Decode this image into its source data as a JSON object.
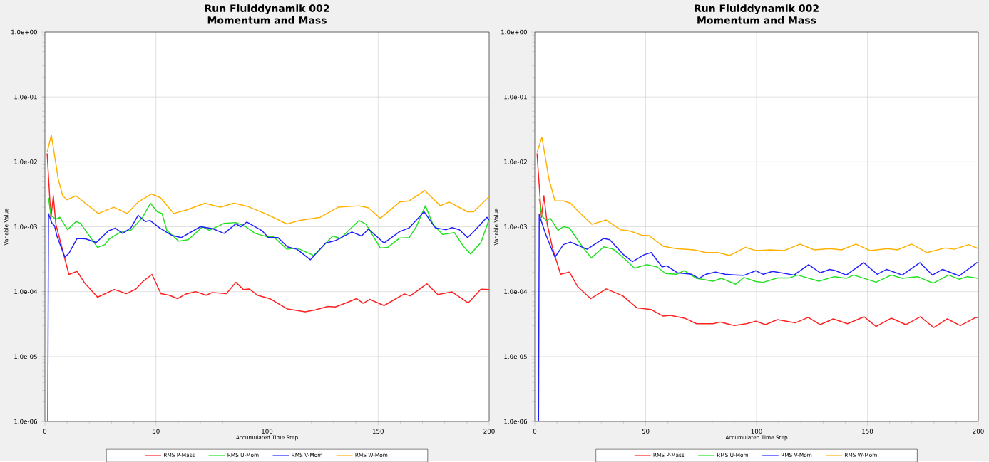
{
  "chart_data": [
    {
      "type": "line",
      "title": "Run Fluiddynamik 002",
      "subtitle": "Momentum and Mass",
      "xlabel": "Accumulated Time Step",
      "ylabel": "Variable Value",
      "log": "y",
      "grid": true,
      "legend": "bottom",
      "marker": "none",
      "xlim": [
        0,
        200
      ],
      "xticks": [
        0,
        50,
        100,
        150,
        200
      ],
      "ylim": [
        1e-06,
        1
      ],
      "yticks": [
        {
          "value": 1e-06,
          "label": "1.0e-06"
        },
        {
          "value": 1e-05,
          "label": "1.0e-05"
        },
        {
          "value": 0.0001,
          "label": "1.0e-04"
        },
        {
          "value": 0.001,
          "label": "1.0e-03"
        },
        {
          "value": 0.01,
          "label": "1.0e-02"
        },
        {
          "value": 0.1,
          "label": "1.0e-01"
        },
        {
          "value": 1,
          "label": "1.0e+00"
        }
      ],
      "series": [
        {
          "name": "RMS P-Mass",
          "color": "#ff2020",
          "x": [
            1,
            2.7,
            3.8,
            4.9,
            7.6,
            10.8,
            14.5,
            17.8,
            23.7,
            31.2,
            36.6,
            40.9,
            44.1,
            48.2,
            52.2,
            56,
            59.7,
            63.5,
            67.8,
            72.6,
            75.3,
            81.7,
            86,
            89.3,
            92,
            95.7,
            100,
            101.6,
            109.2,
            117.2,
            121.5,
            127.4,
            130.7,
            136,
            140.3,
            143.3,
            146.2,
            152.7,
            161.8,
            164.5,
            172,
            176.9,
            183.3,
            190.6,
            196.3,
            200
          ],
          "values": [
            0.0135,
            0.00135,
            0.003,
            0.0011,
            null,
            0.000184,
            0.000205,
            0.000137,
            8.2e-05,
            0.000108,
            9.3e-05,
            0.000109,
            0.000143,
            0.000184,
            9.3e-05,
            8.8e-05,
            7.8e-05,
            9.2e-05,
            0.0001,
            8.8e-05,
            9.7e-05,
            9.3e-05,
            0.000139,
            0.000108,
            0.00011,
            8.8e-05,
            8e-05,
            7.7e-05,
            5.4e-05,
            4.9e-05,
            5.2e-05,
            5.9e-05,
            5.8e-05,
            6.8e-05,
            7.8e-05,
            6.6e-05,
            7.6e-05,
            6.1e-05,
            9.2e-05,
            8.6e-05,
            0.000132,
            9e-05,
            9.9e-05,
            6.7e-05,
            0.000109,
            0.000108
          ]
        },
        {
          "name": "RMS U-Mom",
          "color": "#20e020",
          "x": [
            1.6,
            2.7,
            4.9,
            6.7,
            10.2,
            14,
            16,
            23.7,
            27,
            29,
            34.4,
            38.7,
            44,
            47.5,
            50.6,
            52.7,
            54.9,
            60.2,
            64.5,
            71,
            74,
            80.7,
            86,
            90.4,
            94.7,
            100,
            102.7,
            109,
            113.5,
            121,
            129.6,
            133,
            141.4,
            144.6,
            151,
            154.3,
            159.7,
            164,
            167.2,
            171.3,
            174.7,
            179,
            184.4,
            188.2,
            191.6,
            196.3,
            200
          ],
          "values": [
            0.0028,
            0.0015,
            0.0013,
            0.0014,
            0.0009,
            0.0012,
            0.00113,
            0.00048,
            0.00053,
            0.00065,
            0.00084,
            0.00088,
            0.0014,
            0.0023,
            0.0017,
            0.0016,
            0.00088,
            0.0006,
            0.00063,
            0.001,
            0.00088,
            0.00113,
            0.00116,
            0.001,
            0.00079,
            0.0007,
            0.00071,
            0.00045,
            0.00047,
            0.00036,
            0.00072,
            0.00066,
            0.00125,
            0.00109,
            0.00047,
            0.00048,
            0.00067,
            0.00068,
            0.001,
            0.0021,
            0.00109,
            0.00076,
            0.00081,
            0.00051,
            0.00038,
            0.00057,
            0.0013
          ]
        },
        {
          "name": "RMS V-Mom",
          "color": "#2020ff",
          "x": [
            1.3,
            1.6,
            3.2,
            4.3,
            5.4,
            9,
            10.8,
            14.5,
            18.3,
            23.1,
            28.5,
            31.7,
            35,
            38.7,
            42,
            45.2,
            47.3,
            51.6,
            57,
            61.3,
            70,
            75.3,
            80.7,
            86,
            88.2,
            90.9,
            97.9,
            100.6,
            104.9,
            109.2,
            113.5,
            119.5,
            126.4,
            130.7,
            138.2,
            142.5,
            145.7,
            152.7,
            159.7,
            164,
            170.7,
            175.8,
            180.7,
            183.3,
            186.6,
            190.3,
            193,
            199,
            200
          ],
          "values": [
            1e-06,
            0.0016,
            0.00113,
            0.00104,
            0.00072,
            0.00034,
            0.00039,
            0.00066,
            0.00065,
            0.00057,
            0.00086,
            0.00095,
            0.00079,
            0.00096,
            0.0015,
            0.0012,
            0.00125,
            0.00096,
            0.00074,
            0.00068,
            0.001,
            0.00094,
            0.00079,
            0.00111,
            0.001,
            0.00118,
            0.00086,
            0.00068,
            0.00068,
            0.00049,
            0.00045,
            0.00031,
            0.00056,
            0.00061,
            0.00083,
            0.00072,
            0.00092,
            0.00056,
            0.00084,
            0.00096,
            0.0017,
            0.00096,
            0.0009,
            0.00097,
            0.0009,
            0.00068,
            0.00084,
            0.0014,
            0.00127
          ]
        },
        {
          "name": "RMS W-Mom",
          "color": "#ffb000",
          "x": [
            1,
            2.9,
            6,
            8,
            10,
            14,
            24,
            31,
            37,
            42,
            48,
            52,
            58,
            63.5,
            72,
            79,
            85,
            91.4,
            100,
            109,
            114.5,
            124,
            132,
            141.4,
            145.7,
            151,
            159.7,
            164,
            171,
            178,
            182,
            190.3,
            193,
            200
          ],
          "values": [
            0.014,
            0.026,
            0.0054,
            0.003,
            0.0026,
            0.003,
            0.0016,
            0.002,
            0.0016,
            0.0024,
            0.0032,
            0.0028,
            0.0016,
            0.0018,
            0.0023,
            0.002,
            0.0023,
            0.00205,
            0.00155,
            0.0011,
            0.00125,
            0.0014,
            0.002,
            0.0021,
            0.00195,
            0.00135,
            0.0024,
            0.0025,
            0.0036,
            0.0021,
            0.0024,
            0.0017,
            0.0017,
            0.0029
          ]
        }
      ]
    },
    {
      "type": "line",
      "title": "Run Fluiddynamik 002",
      "subtitle": "Momentum and Mass",
      "xlabel": "Accumulated Time Step",
      "ylabel": "Variable Value",
      "log": "y",
      "grid": true,
      "legend": "bottom",
      "marker": "none",
      "xlim": [
        0,
        200
      ],
      "xticks": [
        0,
        50,
        100,
        150,
        200
      ],
      "ylim": [
        1e-06,
        1
      ],
      "yticks": [
        {
          "value": 1e-06,
          "label": "1.0e-06"
        },
        {
          "value": 1e-05,
          "label": "1.0e-05"
        },
        {
          "value": 0.0001,
          "label": "1.0e-04"
        },
        {
          "value": 0.001,
          "label": "1.0e-03"
        },
        {
          "value": 0.01,
          "label": "1.0e-02"
        },
        {
          "value": 0.1,
          "label": "1.0e-01"
        },
        {
          "value": 1,
          "label": "1.0e+00"
        }
      ],
      "series": [
        {
          "name": "RMS P-Mass",
          "color": "#ff2020",
          "x": [
            1,
            3,
            4.1,
            5.6,
            8,
            11.6,
            15.6,
            19.3,
            25.2,
            32.2,
            39.7,
            46.1,
            52.5,
            57.9,
            61.1,
            67.5,
            72.9,
            80.4,
            83.6,
            90,
            95.4,
            99.7,
            104,
            109.4,
            117.4,
            123.3,
            128.7,
            134.6,
            141,
            148.5,
            153.9,
            160.8,
            167.3,
            173.9,
            179.9,
            186,
            191.9,
            198.9,
            200
          ],
          "values": [
            0.0135,
            0.0014,
            0.003,
            0.0011,
            0.00047,
            0.000185,
            0.0002,
            0.00012,
            7.8e-05,
            0.00011,
            8.6e-05,
            5.6e-05,
            5.3e-05,
            4.2e-05,
            4.3e-05,
            3.9e-05,
            3.2e-05,
            3.2e-05,
            3.4e-05,
            3e-05,
            3.2e-05,
            3.5e-05,
            3.1e-05,
            3.7e-05,
            3.3e-05,
            4e-05,
            3.1e-05,
            3.8e-05,
            3.2e-05,
            4.1e-05,
            2.9e-05,
            3.9e-05,
            3.1e-05,
            4.1e-05,
            2.8e-05,
            3.8e-05,
            3e-05,
            4e-05,
            4e-05
          ]
        },
        {
          "name": "RMS U-Mom",
          "color": "#20e020",
          "x": [
            2,
            3.2,
            5.2,
            7,
            10.5,
            12.9,
            15.6,
            21.5,
            25.5,
            31.1,
            35.4,
            39.7,
            45,
            50.4,
            55.2,
            59,
            63.8,
            67.5,
            72.9,
            80.4,
            84.2,
            90.6,
            94.3,
            99.7,
            103,
            109.4,
            114.7,
            118.5,
            128.1,
            135.1,
            140.5,
            143.7,
            153.9,
            160.8,
            165.7,
            172.6,
            179.6,
            186.6,
            191.4,
            195.1,
            200
          ],
          "values": [
            0.0027,
            0.00147,
            0.00124,
            0.00135,
            0.00088,
            0.001,
            0.00096,
            0.00049,
            0.00033,
            0.00049,
            0.00045,
            0.00034,
            0.00023,
            0.00026,
            0.00024,
            0.00019,
            0.000185,
            0.00021,
            0.00016,
            0.000145,
            0.00016,
            0.00013,
            0.000165,
            0.000143,
            0.000139,
            0.000162,
            0.000162,
            0.00018,
            0.000145,
            0.00017,
            0.00016,
            0.00018,
            0.00014,
            0.00018,
            0.00016,
            0.00017,
            0.000135,
            0.00018,
            0.000155,
            0.00017,
            0.00016
          ]
        },
        {
          "name": "RMS V-Mom",
          "color": "#2020ff",
          "x": [
            1.7,
            2,
            3.4,
            5.2,
            9.1,
            12.9,
            16.1,
            23.6,
            31.1,
            33.8,
            39.7,
            44,
            49.3,
            52.5,
            57.4,
            59.5,
            64.3,
            70.8,
            74,
            77.2,
            81.5,
            85.8,
            91.1,
            94.3,
            99.7,
            103,
            107.2,
            116.9,
            123.5,
            128.7,
            133,
            135.6,
            140.5,
            148.3,
            154.4,
            158.7,
            165.7,
            173.7,
            179.3,
            183.9,
            191.4,
            199.4,
            200
          ],
          "values": [
            1e-06,
            0.00157,
            0.00109,
            0.00072,
            0.00034,
            0.00053,
            0.00058,
            0.00045,
            0.00066,
            0.00063,
            0.00038,
            0.00029,
            0.00037,
            0.0004,
            0.00024,
            0.00025,
            0.000195,
            0.000185,
            0.00016,
            0.000185,
            0.0002,
            0.000185,
            0.00018,
            0.000178,
            0.00021,
            0.000185,
            0.000205,
            0.00018,
            0.00026,
            0.000195,
            0.00022,
            0.00021,
            0.00018,
            0.00028,
            0.000185,
            0.00022,
            0.00018,
            0.00028,
            0.00018,
            0.00022,
            0.000175,
            0.00028,
            0.000275
          ]
        },
        {
          "name": "RMS W-Mom",
          "color": "#ffb000",
          "x": [
            1,
            3.2,
            6.4,
            9.1,
            12.9,
            16.1,
            19.8,
            25.7,
            32.2,
            38.6,
            42.9,
            48.2,
            51.5,
            57.9,
            63.8,
            71.8,
            77.2,
            82.5,
            87.9,
            94.9,
            99.7,
            106.2,
            112.6,
            119.6,
            126,
            133,
            138.3,
            144.8,
            151.2,
            159.2,
            163.5,
            169.9,
            176.9,
            185,
            189.2,
            195.7,
            200
          ],
          "values": [
            0.0138,
            0.024,
            0.0054,
            0.0025,
            0.0025,
            0.0023,
            0.0017,
            0.00109,
            0.00127,
            0.0009,
            0.00086,
            0.00074,
            0.00073,
            0.0005,
            0.00046,
            0.00044,
            0.0004,
            0.0004,
            0.00036,
            0.00048,
            0.00043,
            0.00044,
            0.00043,
            0.00054,
            0.00044,
            0.00046,
            0.00044,
            0.00054,
            0.00043,
            0.00046,
            0.00044,
            0.00054,
            0.0004,
            0.00047,
            0.00045,
            0.00053,
            0.00046
          ]
        }
      ]
    }
  ]
}
